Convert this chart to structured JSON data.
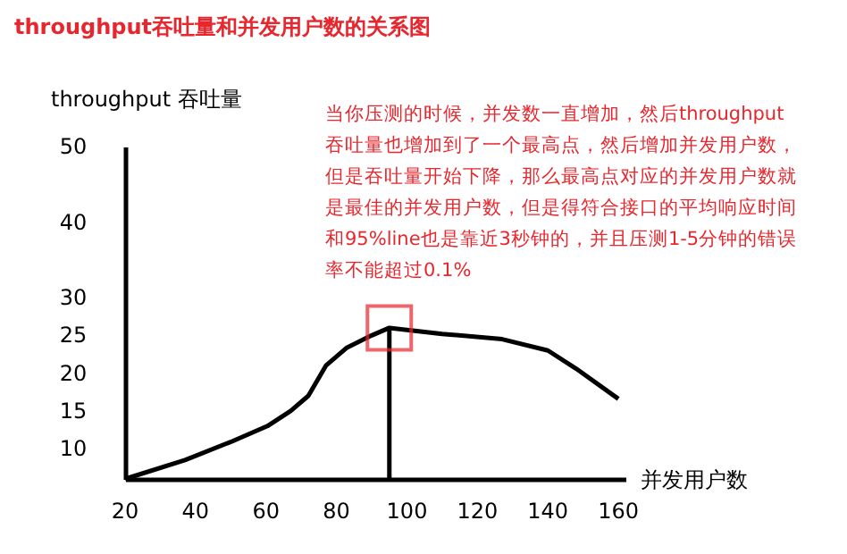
{
  "chart_data": {
    "type": "line",
    "title": "throughput吞吐量和并发用户数的关系图",
    "xlabel": "并发用户数",
    "ylabel": "throughput 吞吐量",
    "xlim": [
      20,
      162
    ],
    "xticks": [
      20,
      40,
      60,
      80,
      100,
      120,
      140,
      160
    ],
    "ylim": [
      6,
      50
    ],
    "yticks": [
      10,
      15,
      20,
      25,
      30,
      40,
      50
    ],
    "grid": false,
    "marker": "none",
    "line_style": "solid",
    "series": [
      {
        "color": "#000000",
        "x": [
          20,
          37,
          50.5,
          60.4,
          67,
          72,
          77,
          83,
          90,
          95,
          110,
          127,
          140,
          148,
          160
        ],
        "values": [
          6,
          8.5,
          11,
          13,
          15,
          17,
          21,
          23.4,
          25,
          26,
          25.2,
          24.5,
          23,
          20.6,
          16.6
        ]
      },
      {
        "color": "#000000",
        "x": [
          95,
          95
        ],
        "values": [
          6,
          26
        ]
      }
    ],
    "annotations": [
      {
        "text": "当你压测的时候，并发数一直增加，然后throughput吞吐量也增加到了一个最高点，然后增加并发用户数，但是吞吐量开始下降，那么最高点对应的并发用户数就是最佳的并发用户数，但是得符合接口的平均响应时间和95%line也是靠近3秒钟的，并且压测1-5分钟的错误率不能超过0.1%",
        "x": 95,
        "y": 26
      }
    ]
  }
}
